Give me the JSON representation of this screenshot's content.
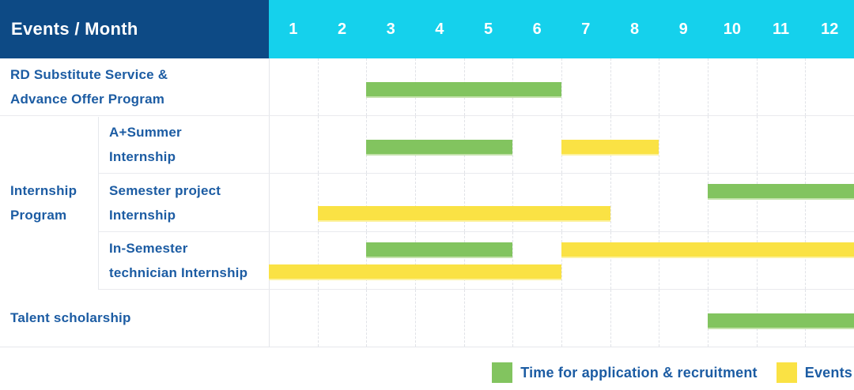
{
  "colors": {
    "navy": "#0D4A85",
    "cyan": "#15D1EC",
    "green": "#82C45F",
    "yellow": "#FAE244",
    "label_blue": "#1C5CA3"
  },
  "header": {
    "title": "Events / Month",
    "months": [
      "1",
      "2",
      "3",
      "4",
      "5",
      "6",
      "7",
      "8",
      "9",
      "10",
      "11",
      "12"
    ]
  },
  "group": {
    "label_lines": [
      "Internship",
      "Program"
    ]
  },
  "legend": [
    {
      "key": "application",
      "color": "green",
      "label": "Time for application & recruitment"
    },
    {
      "key": "events",
      "color": "yellow",
      "label": "Events"
    }
  ],
  "chart_data": {
    "type": "gantt",
    "title": "Events / Month",
    "x_axis": {
      "unit": "month",
      "ticks": [
        1,
        2,
        3,
        4,
        5,
        6,
        7,
        8,
        9,
        10,
        11,
        12
      ],
      "range": [
        1,
        12
      ]
    },
    "series_legend": {
      "green": "Time for application & recruitment",
      "yellow": "Events"
    },
    "rows": [
      {
        "label_lines": [
          "RD Substitute Service &",
          "Advance Offer Program"
        ],
        "group": "",
        "bars": [
          {
            "series": "application",
            "color": "green",
            "start_month": 3,
            "end_month": 6,
            "lane": "center"
          }
        ]
      },
      {
        "label_lines": [
          "A+Summer",
          "Internship"
        ],
        "group": "Internship Program",
        "bars": [
          {
            "series": "application",
            "color": "green",
            "start_month": 3,
            "end_month": 5,
            "lane": "center"
          },
          {
            "series": "events",
            "color": "yellow",
            "start_month": 7,
            "end_month": 8,
            "lane": "center"
          }
        ]
      },
      {
        "label_lines": [
          "Semester project",
          "Internship"
        ],
        "group": "Internship Program",
        "bars": [
          {
            "series": "application",
            "color": "green",
            "start_month": 10,
            "end_month": 12,
            "lane": "top"
          },
          {
            "series": "events",
            "color": "yellow",
            "start_month": 2,
            "end_month": 7,
            "lane": "bottom"
          }
        ]
      },
      {
        "label_lines": [
          "In-Semester",
          "technician Internship"
        ],
        "group": "Internship Program",
        "bars": [
          {
            "series": "application",
            "color": "green",
            "start_month": 3,
            "end_month": 5,
            "lane": "top"
          },
          {
            "series": "events",
            "color": "yellow",
            "start_month": 7,
            "end_month": 12,
            "lane": "top"
          },
          {
            "series": "events",
            "color": "yellow",
            "start_month": 1,
            "end_month": 6,
            "lane": "bottom"
          }
        ]
      },
      {
        "label_lines": [
          "Talent scholarship"
        ],
        "group": "",
        "bars": [
          {
            "series": "application",
            "color": "green",
            "start_month": 10,
            "end_month": 12,
            "lane": "center"
          }
        ]
      }
    ]
  }
}
